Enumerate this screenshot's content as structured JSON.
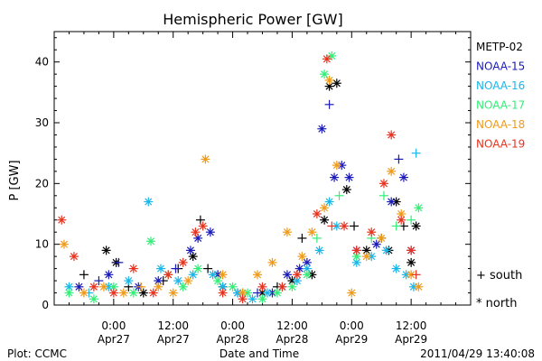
{
  "chart_data": {
    "type": "scatter",
    "title": "Hemispheric Power [GW]",
    "xlabel": "Date and Time",
    "ylabel": "P [GW]",
    "ylim": [
      0,
      45
    ],
    "xlim_hours": [
      -12,
      72
    ],
    "ytick_values": [
      0,
      10,
      20,
      30,
      40
    ],
    "ytick_labels": [
      "0",
      "10",
      "20",
      "30",
      "40"
    ],
    "xticks": [
      {
        "hours": 0,
        "time": "0:00",
        "date": "Apr27"
      },
      {
        "hours": 12,
        "time": "12:00",
        "date": "Apr27"
      },
      {
        "hours": 24,
        "time": "0:00",
        "date": "Apr28"
      },
      {
        "hours": 36,
        "time": "12:00",
        "date": "Apr28"
      },
      {
        "hours": 48,
        "time": "0:00",
        "date": "Apr29"
      },
      {
        "hours": 60,
        "time": "12:00",
        "date": "Apr29"
      }
    ],
    "series": [
      {
        "name": "METP-02",
        "color": "#000000",
        "points": [
          [
            -6,
            5,
            "plus"
          ],
          [
            -1.5,
            9,
            "star"
          ],
          [
            0.5,
            7,
            "star"
          ],
          [
            3,
            3,
            "plus"
          ],
          [
            6,
            2,
            "star"
          ],
          [
            10,
            4,
            "plus"
          ],
          [
            13,
            6,
            "plus"
          ],
          [
            16,
            8,
            "star"
          ],
          [
            17.5,
            14,
            "plus"
          ],
          [
            19,
            6,
            "plus"
          ],
          [
            22,
            3,
            "star"
          ],
          [
            26,
            2,
            "plus"
          ],
          [
            30,
            2,
            "star"
          ],
          [
            33,
            3,
            "plus"
          ],
          [
            36,
            4,
            "star"
          ],
          [
            38,
            11,
            "plus"
          ],
          [
            40,
            5,
            "star"
          ],
          [
            42.5,
            14,
            "star"
          ],
          [
            43.5,
            36,
            "star"
          ],
          [
            45,
            36.5,
            "star"
          ],
          [
            47,
            19,
            "star"
          ],
          [
            48.5,
            13,
            "plus"
          ],
          [
            51,
            9,
            "star"
          ],
          [
            54,
            11,
            "plus"
          ],
          [
            55.5,
            9,
            "star"
          ],
          [
            57,
            17,
            "star"
          ],
          [
            58.5,
            13,
            "plus"
          ],
          [
            60,
            7,
            "star"
          ],
          [
            61,
            13,
            "star"
          ]
        ]
      },
      {
        "name": "NOAA-15",
        "color": "#1a1ab8",
        "points": [
          [
            -7,
            3,
            "star"
          ],
          [
            -3,
            4,
            "plus"
          ],
          [
            -1,
            5,
            "star"
          ],
          [
            1,
            7,
            "plus"
          ],
          [
            5,
            3,
            "star"
          ],
          [
            9,
            4,
            "star"
          ],
          [
            12.5,
            6,
            "plus"
          ],
          [
            15.5,
            9,
            "star"
          ],
          [
            17,
            11,
            "star"
          ],
          [
            19.5,
            12,
            "star"
          ],
          [
            21,
            5,
            "star"
          ],
          [
            25,
            2,
            "star"
          ],
          [
            29,
            2,
            "plus"
          ],
          [
            32,
            2,
            "star"
          ],
          [
            35,
            5,
            "star"
          ],
          [
            37.5,
            6,
            "star"
          ],
          [
            39,
            7,
            "star"
          ],
          [
            42,
            29,
            "star"
          ],
          [
            43.5,
            33,
            "plus"
          ],
          [
            44.5,
            21,
            "star"
          ],
          [
            46,
            23,
            "star"
          ],
          [
            47.5,
            21,
            "star"
          ],
          [
            49,
            9,
            "star"
          ],
          [
            53,
            10,
            "star"
          ],
          [
            56,
            17,
            "star"
          ],
          [
            57.5,
            24,
            "plus"
          ],
          [
            58.5,
            21,
            "star"
          ],
          [
            60,
            9,
            "star"
          ]
        ]
      },
      {
        "name": "NOAA-16",
        "color": "#19b6e8",
        "points": [
          [
            -9,
            3,
            "star"
          ],
          [
            -5,
            2,
            "plus"
          ],
          [
            -1,
            3,
            "star"
          ],
          [
            3,
            4,
            "star"
          ],
          [
            7,
            17,
            "star"
          ],
          [
            9.5,
            6,
            "star"
          ],
          [
            13,
            4,
            "star"
          ],
          [
            16,
            5,
            "star"
          ],
          [
            20,
            5,
            "star"
          ],
          [
            22,
            3,
            "star"
          ],
          [
            25,
            2,
            "star"
          ],
          [
            28,
            1,
            "star"
          ],
          [
            31,
            2,
            "star"
          ],
          [
            34,
            3,
            "star"
          ],
          [
            37,
            4,
            "star"
          ],
          [
            39,
            6,
            "star"
          ],
          [
            41.5,
            9,
            "star"
          ],
          [
            43.5,
            17,
            "star"
          ],
          [
            45,
            13,
            "star"
          ],
          [
            49,
            7,
            "star"
          ],
          [
            52,
            8,
            "star"
          ],
          [
            55,
            9,
            "star"
          ],
          [
            57,
            6,
            "star"
          ],
          [
            59,
            5,
            "star"
          ],
          [
            60.5,
            3,
            "star"
          ],
          [
            61,
            25,
            "plus"
          ]
        ]
      },
      {
        "name": "NOAA-17",
        "color": "#33ee77",
        "points": [
          [
            -9,
            2,
            "star"
          ],
          [
            -4,
            1,
            "star"
          ],
          [
            0,
            3,
            "star"
          ],
          [
            4,
            2,
            "star"
          ],
          [
            7.5,
            10.5,
            "star"
          ],
          [
            11,
            5,
            "star"
          ],
          [
            14,
            3,
            "star"
          ],
          [
            17,
            6,
            "star"
          ],
          [
            21,
            4,
            "star"
          ],
          [
            24,
            3,
            "star"
          ],
          [
            27,
            2,
            "star"
          ],
          [
            30,
            1,
            "star"
          ],
          [
            33,
            2,
            "star"
          ],
          [
            36,
            3,
            "star"
          ],
          [
            39,
            5,
            "star"
          ],
          [
            41,
            11,
            "plus"
          ],
          [
            42.5,
            38,
            "star"
          ],
          [
            44,
            41,
            "star"
          ],
          [
            45.5,
            18,
            "plus"
          ],
          [
            49,
            8,
            "star"
          ],
          [
            52,
            11,
            "plus"
          ],
          [
            54.5,
            18,
            "plus"
          ],
          [
            57,
            13,
            "plus"
          ],
          [
            60,
            14,
            "plus"
          ],
          [
            61.5,
            16,
            "star"
          ]
        ]
      },
      {
        "name": "NOAA-18",
        "color": "#f09a18",
        "points": [
          [
            -10,
            10,
            "star"
          ],
          [
            -6,
            2,
            "star"
          ],
          [
            -2,
            3,
            "star"
          ],
          [
            2,
            2,
            "star"
          ],
          [
            5.5,
            3,
            "plus"
          ],
          [
            9,
            3,
            "star"
          ],
          [
            12,
            2,
            "star"
          ],
          [
            15,
            4,
            "star"
          ],
          [
            18.5,
            24,
            "star"
          ],
          [
            22,
            5,
            "star"
          ],
          [
            26,
            2,
            "star"
          ],
          [
            29,
            5,
            "star"
          ],
          [
            32,
            7,
            "star"
          ],
          [
            35,
            12,
            "star"
          ],
          [
            38,
            8,
            "star"
          ],
          [
            40,
            12,
            "star"
          ],
          [
            42.5,
            16,
            "star"
          ],
          [
            43.5,
            37,
            "star"
          ],
          [
            45,
            23,
            "star"
          ],
          [
            48,
            2,
            "star"
          ],
          [
            51,
            8,
            "star"
          ],
          [
            54,
            11,
            "star"
          ],
          [
            56,
            22,
            "star"
          ],
          [
            58,
            15,
            "star"
          ],
          [
            60,
            5,
            "star"
          ],
          [
            61.5,
            3,
            "star"
          ]
        ]
      },
      {
        "name": "NOAA-19",
        "color": "#e8321e",
        "points": [
          [
            -10.5,
            14,
            "star"
          ],
          [
            -8,
            8,
            "star"
          ],
          [
            -4,
            3,
            "star"
          ],
          [
            0,
            2,
            "star"
          ],
          [
            4,
            6,
            "star"
          ],
          [
            8,
            2,
            "star"
          ],
          [
            11,
            5,
            "star"
          ],
          [
            14,
            7,
            "star"
          ],
          [
            16.5,
            12,
            "star"
          ],
          [
            18,
            13,
            "star"
          ],
          [
            22,
            2,
            "star"
          ],
          [
            26,
            1,
            "star"
          ],
          [
            30,
            3,
            "star"
          ],
          [
            34,
            3,
            "star"
          ],
          [
            37,
            5,
            "star"
          ],
          [
            41,
            15,
            "star"
          ],
          [
            43,
            40.5,
            "star"
          ],
          [
            44,
            13,
            "plus"
          ],
          [
            46.5,
            13,
            "star"
          ],
          [
            49,
            9,
            "star"
          ],
          [
            52,
            12,
            "star"
          ],
          [
            54.5,
            20,
            "star"
          ],
          [
            56,
            28,
            "star"
          ],
          [
            58,
            14,
            "star"
          ],
          [
            60,
            9,
            "star"
          ],
          [
            61,
            5,
            "plus"
          ]
        ]
      }
    ],
    "legend_position": "right",
    "symbol_legend": [
      {
        "symbol": "+",
        "label": "south"
      },
      {
        "symbol": "*",
        "label": "north"
      }
    ]
  },
  "footer": {
    "left": "Plot: CCMC",
    "center": "Date and Time",
    "right": "2011/04/29 13:40:08"
  },
  "colors": {
    "background": "#ffffff",
    "axis": "#000000"
  }
}
